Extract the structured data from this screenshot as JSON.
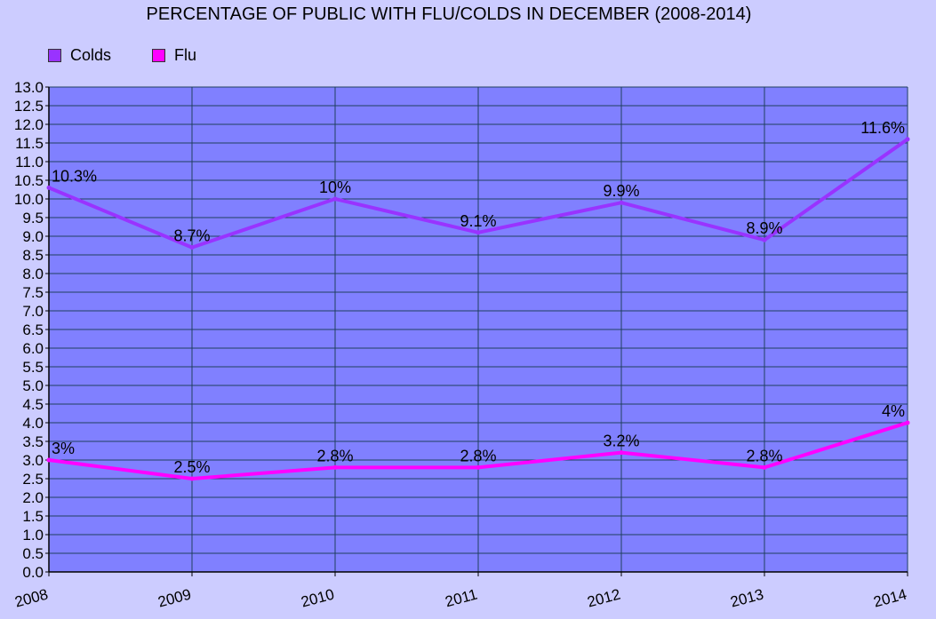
{
  "chart_data": {
    "type": "line",
    "title": "PERCENTAGE OF PUBLIC WITH FLU/COLDS IN DECEMBER (2008-2014)",
    "xlabel": "",
    "ylabel": "",
    "categories": [
      "2008",
      "2009",
      "2010",
      "2011",
      "2012",
      "2013",
      "2014"
    ],
    "ylim": [
      0,
      13
    ],
    "ytick_step": 0.5,
    "grid": true,
    "legend_position": "top-left",
    "plot_background": "#8080ff",
    "grid_color": "#1f3f5f",
    "series": [
      {
        "name": "Colds",
        "color": "#9933ff",
        "values": [
          10.3,
          8.7,
          10,
          9.1,
          9.9,
          8.9,
          11.6
        ],
        "labels": [
          "10.3%",
          "8.7%",
          "10%",
          "9.1%",
          "9.9%",
          "8.9%",
          "11.6%"
        ]
      },
      {
        "name": "Flu",
        "color": "#ff00ff",
        "values": [
          3,
          2.5,
          2.8,
          2.8,
          3.2,
          2.8,
          4
        ],
        "labels": [
          "3%",
          "2.5%",
          "2.8%",
          "2.8%",
          "3.2%",
          "2.8%",
          "4%"
        ]
      }
    ]
  }
}
